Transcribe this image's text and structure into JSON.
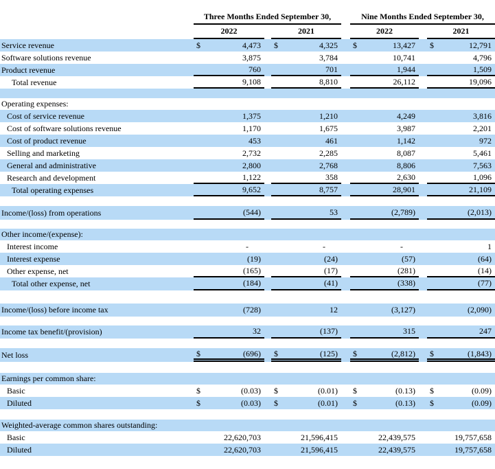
{
  "colors": {
    "row_highlight": "#B8DAF6",
    "border": "#000000"
  },
  "table": {
    "currency_symbol": "$",
    "col_groups": [
      {
        "label": "Three Months Ended September 30,"
      },
      {
        "label": "Nine Months Ended September 30,"
      }
    ],
    "year_headers": [
      "2022",
      "2021",
      "2022",
      "2021"
    ],
    "rows": [
      {
        "type": "data",
        "label": "Service revenue",
        "indent": 0,
        "bg": "blue",
        "dollar": true,
        "values": [
          "4,473",
          "4,325",
          "13,427",
          "12,791"
        ],
        "border": "none"
      },
      {
        "type": "data",
        "label": "Software solutions revenue",
        "indent": 0,
        "bg": "white",
        "dollar": false,
        "values": [
          "3,875",
          "3,784",
          "10,741",
          "4,796"
        ],
        "border": "none"
      },
      {
        "type": "data",
        "label": "Product revenue",
        "indent": 0,
        "bg": "blue",
        "dollar": false,
        "values": [
          "760",
          "701",
          "1,944",
          "1,509"
        ],
        "border": "single"
      },
      {
        "type": "data",
        "label": "Total revenue",
        "indent": 2,
        "bg": "white",
        "dollar": false,
        "values": [
          "9,108",
          "8,810",
          "26,112",
          "19,096"
        ],
        "border": "single"
      },
      {
        "type": "blank",
        "bg": "blue",
        "h": 14
      },
      {
        "type": "section",
        "label": "Operating expenses:",
        "indent": 0,
        "bg": "white",
        "h": 17
      },
      {
        "type": "data",
        "label": "Cost of service revenue",
        "indent": 1,
        "bg": "blue",
        "dollar": false,
        "values": [
          "1,375",
          "1,210",
          "4,249",
          "3,816"
        ],
        "border": "none"
      },
      {
        "type": "data",
        "label": "Cost of software solutions revenue",
        "indent": 1,
        "bg": "white",
        "dollar": false,
        "values": [
          "1,170",
          "1,675",
          "3,987",
          "2,201"
        ],
        "border": "none"
      },
      {
        "type": "data",
        "label": "Cost of product revenue",
        "indent": 1,
        "bg": "blue",
        "dollar": false,
        "values": [
          "453",
          "461",
          "1,142",
          "972"
        ],
        "border": "none"
      },
      {
        "type": "data",
        "label": "Selling and marketing",
        "indent": 1,
        "bg": "white",
        "dollar": false,
        "values": [
          "2,732",
          "2,285",
          "8,087",
          "5,461"
        ],
        "border": "none"
      },
      {
        "type": "data",
        "label": "General and administrative",
        "indent": 1,
        "bg": "blue",
        "dollar": false,
        "values": [
          "2,800",
          "2,768",
          "8,806",
          "7,563"
        ],
        "border": "none"
      },
      {
        "type": "data",
        "label": "Research and development",
        "indent": 1,
        "bg": "white",
        "dollar": false,
        "values": [
          "1,122",
          "358",
          "2,630",
          "1,096"
        ],
        "border": "single"
      },
      {
        "type": "data",
        "label": "Total operating expenses",
        "indent": 2,
        "bg": "blue",
        "dollar": false,
        "values": [
          "9,652",
          "8,757",
          "28,901",
          "21,109"
        ],
        "border": "single"
      },
      {
        "type": "blank",
        "bg": "white",
        "h": 14
      },
      {
        "type": "data",
        "label": "Income/(loss) from operations",
        "indent": 0,
        "bg": "blue",
        "dollar": false,
        "values": [
          "(544)",
          "53",
          "(2,789)",
          "(2,013)"
        ],
        "border": "single",
        "h": 20
      },
      {
        "type": "blank",
        "bg": "white",
        "h": 13
      },
      {
        "type": "section",
        "label": "Other income/(expense):",
        "indent": 0,
        "bg": "blue",
        "h": 17
      },
      {
        "type": "data",
        "label": "Interest income",
        "indent": 1,
        "bg": "white",
        "dollar": false,
        "values": [
          "-",
          "-",
          "-",
          "1"
        ],
        "border": "none"
      },
      {
        "type": "data",
        "label": "Interest expense",
        "indent": 1,
        "bg": "blue",
        "dollar": false,
        "values": [
          "(19)",
          "(24)",
          "(57)",
          "(64)"
        ],
        "border": "none"
      },
      {
        "type": "data",
        "label": "Other expense, net",
        "indent": 1,
        "bg": "white",
        "dollar": false,
        "values": [
          "(165)",
          "(17)",
          "(281)",
          "(14)"
        ],
        "border": "single"
      },
      {
        "type": "data",
        "label": "Total other expense, net",
        "indent": 2,
        "bg": "blue",
        "dollar": false,
        "values": [
          "(184)",
          "(41)",
          "(338)",
          "(77)"
        ],
        "border": "single",
        "h": 19
      },
      {
        "type": "blank",
        "bg": "white",
        "h": 19
      },
      {
        "type": "data",
        "label": "Income/(loss) before income tax",
        "indent": 0,
        "bg": "blue",
        "dollar": false,
        "values": [
          "(728)",
          "12",
          "(3,127)",
          "(2,090)"
        ],
        "border": "none",
        "h": 19
      },
      {
        "type": "blank",
        "bg": "white",
        "h": 13
      },
      {
        "type": "data",
        "label": "Income tax benefit/(provision)",
        "indent": 0,
        "bg": "blue",
        "dollar": false,
        "values": [
          "32",
          "(137)",
          "315",
          "247"
        ],
        "border": "single",
        "h": 19
      },
      {
        "type": "blank",
        "bg": "white",
        "h": 14
      },
      {
        "type": "data",
        "label": "Net loss",
        "indent": 0,
        "bg": "blue",
        "dollar": true,
        "values": [
          "(696)",
          "(125)",
          "(2,812)",
          "(1,843)"
        ],
        "border": "double",
        "h": 20
      },
      {
        "type": "blank",
        "bg": "white",
        "h": 16
      },
      {
        "type": "section",
        "label": "Earnings per common share:",
        "indent": 0,
        "bg": "blue",
        "h": 17
      },
      {
        "type": "data",
        "label": "Basic",
        "indent": 1,
        "bg": "white",
        "dollar": true,
        "values": [
          "(0.03)",
          "(0.01)",
          "(0.13)",
          "(0.09)"
        ],
        "border": "none"
      },
      {
        "type": "data",
        "label": "Diluted",
        "indent": 1,
        "bg": "blue",
        "dollar": true,
        "values": [
          "(0.03)",
          "(0.01)",
          "(0.13)",
          "(0.09)"
        ],
        "border": "none"
      },
      {
        "type": "blank",
        "bg": "white",
        "h": 15
      },
      {
        "type": "section",
        "label": "Weighted-average common shares outstanding:",
        "indent": 0,
        "bg": "blue",
        "h": 17
      },
      {
        "type": "data",
        "label": "Basic",
        "indent": 1,
        "bg": "white",
        "dollar": false,
        "values": [
          "22,620,703",
          "21,596,415",
          "22,439,575",
          "19,757,658"
        ],
        "border": "none"
      },
      {
        "type": "data",
        "label": "Diluted",
        "indent": 1,
        "bg": "blue",
        "dollar": false,
        "values": [
          "22,620,703",
          "21,596,415",
          "22,439,575",
          "19,757,658"
        ],
        "border": "none"
      }
    ]
  }
}
